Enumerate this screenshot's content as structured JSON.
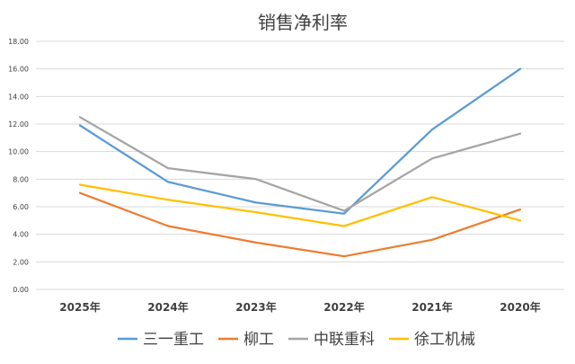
{
  "chart_data": {
    "type": "line",
    "title": "销售净利率",
    "categories": [
      "2025年",
      "2024年",
      "2023年",
      "2022年",
      "2021年",
      "2020年"
    ],
    "ylim": [
      0,
      18
    ],
    "ytick_step": 2,
    "ytick_labels": [
      "0.00",
      "2.00",
      "4.00",
      "6.00",
      "8.00",
      "10.00",
      "12.00",
      "14.00",
      "16.00",
      "18.00"
    ],
    "grid": true,
    "legend_position": "bottom",
    "series": [
      {
        "name": "三一重工",
        "color": "#5b9bd5",
        "values": [
          11.9,
          7.8,
          6.3,
          5.5,
          11.6,
          16.0
        ]
      },
      {
        "name": "柳工",
        "color": "#ed7d31",
        "values": [
          7.0,
          4.6,
          3.4,
          2.4,
          3.6,
          5.8
        ]
      },
      {
        "name": "中联重科",
        "color": "#a5a5a5",
        "values": [
          12.5,
          8.8,
          8.0,
          5.7,
          9.5,
          11.3
        ]
      },
      {
        "name": "徐工机械",
        "color": "#ffc000",
        "values": [
          7.6,
          6.5,
          5.6,
          4.6,
          6.7,
          5.0
        ]
      }
    ]
  }
}
